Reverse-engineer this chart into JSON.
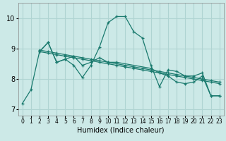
{
  "xlabel": "Humidex (Indice chaleur)",
  "xlim": [
    -0.5,
    23.5
  ],
  "ylim": [
    6.8,
    10.5
  ],
  "yticks": [
    7,
    8,
    9,
    10
  ],
  "xticks": [
    0,
    1,
    2,
    3,
    4,
    5,
    6,
    7,
    8,
    9,
    10,
    11,
    12,
    13,
    14,
    15,
    16,
    17,
    18,
    19,
    20,
    21,
    22,
    23
  ],
  "bg_color": "#cce9e7",
  "grid_color": "#afd4d2",
  "line_color": "#1a7a6e",
  "series": [
    {
      "x": [
        0,
        1,
        2,
        3,
        4,
        5,
        6,
        7,
        8,
        9,
        10,
        11,
        12,
        13,
        14,
        15,
        16,
        17,
        18,
        19,
        20,
        21,
        22,
        23
      ],
      "y": [
        7.2,
        7.65,
        8.9,
        9.2,
        8.55,
        8.65,
        8.45,
        8.05,
        8.45,
        9.05,
        9.85,
        10.05,
        10.05,
        9.55,
        9.35,
        8.45,
        7.75,
        8.3,
        8.25,
        8.1,
        8.1,
        8.2,
        7.45,
        7.45
      ]
    },
    {
      "x": [
        2,
        3,
        4,
        5,
        6,
        7,
        8,
        9,
        10,
        11,
        12,
        13,
        14,
        15,
        16,
        17,
        18,
        19,
        20,
        21,
        22,
        23
      ],
      "y": [
        8.9,
        8.85,
        8.8,
        8.75,
        8.7,
        8.65,
        8.6,
        8.55,
        8.5,
        8.45,
        8.4,
        8.35,
        8.3,
        8.25,
        8.2,
        8.15,
        8.1,
        8.05,
        8.0,
        7.95,
        7.9,
        7.85
      ]
    },
    {
      "x": [
        2,
        3,
        4,
        5,
        6,
        7,
        8,
        9,
        10,
        11,
        12,
        13,
        14,
        15,
        16,
        17,
        18,
        19,
        20,
        21,
        22,
        23
      ],
      "y": [
        8.95,
        8.9,
        8.85,
        8.8,
        8.75,
        8.7,
        8.65,
        8.6,
        8.55,
        8.5,
        8.45,
        8.4,
        8.35,
        8.3,
        8.25,
        8.2,
        8.15,
        8.1,
        8.05,
        8.0,
        7.95,
        7.9
      ]
    },
    {
      "x": [
        2,
        3,
        4,
        5,
        6,
        7,
        8,
        9,
        10,
        11,
        15,
        16,
        17,
        18,
        19,
        20,
        21,
        22,
        23
      ],
      "y": [
        8.9,
        9.2,
        8.55,
        8.65,
        8.75,
        8.45,
        8.55,
        8.7,
        8.55,
        8.55,
        8.35,
        8.2,
        8.1,
        7.9,
        7.85,
        7.9,
        8.1,
        7.45,
        7.45
      ]
    }
  ]
}
